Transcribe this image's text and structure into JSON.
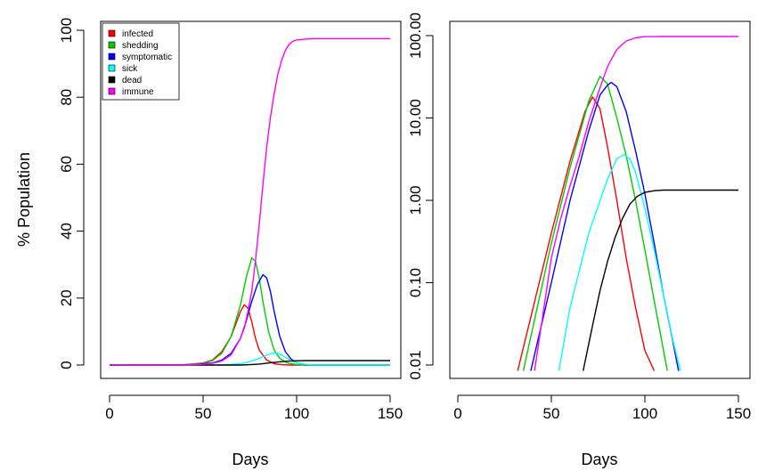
{
  "chart_data": [
    {
      "type": "line",
      "scale": "linear",
      "xlabel": "Days",
      "ylabel": "% Population",
      "xlim": [
        0,
        150
      ],
      "ylim": [
        0,
        100
      ],
      "xticks": [
        0,
        50,
        100,
        150
      ],
      "yticks": [
        0,
        20,
        40,
        60,
        80,
        100
      ],
      "xtick_labels": [
        "0",
        "50",
        "100",
        "150"
      ],
      "ytick_labels": [
        "0",
        "20",
        "40",
        "60",
        "80",
        "100"
      ],
      "grid": false,
      "legend": "top-left",
      "series": [
        {
          "name": "infected",
          "color": "#ff0000",
          "x": [
            0,
            40,
            50,
            55,
            60,
            65,
            68,
            70,
            72,
            74,
            76,
            78,
            80,
            84,
            88,
            92,
            96,
            100,
            150
          ],
          "y": [
            0,
            0.1,
            0.6,
            1.5,
            4,
            8.5,
            13,
            16,
            18,
            17,
            13,
            8,
            4.5,
            1.5,
            0.4,
            0.1,
            0,
            0,
            0
          ]
        },
        {
          "name": "shedding",
          "color": "#00cc00",
          "x": [
            0,
            40,
            50,
            55,
            60,
            65,
            70,
            73,
            76,
            78,
            80,
            82,
            85,
            88,
            91,
            95,
            100,
            105,
            150
          ],
          "y": [
            0,
            0.1,
            0.5,
            1.3,
            3.5,
            8.5,
            18,
            26,
            32,
            31,
            26,
            19,
            10,
            4.5,
            2,
            0.6,
            0.1,
            0,
            0
          ]
        },
        {
          "name": "symptomatic",
          "color": "#0000ff",
          "x": [
            0,
            45,
            55,
            60,
            65,
            70,
            73,
            76,
            79,
            82,
            84,
            86,
            88,
            91,
            94,
            97,
            100,
            105,
            110,
            150
          ],
          "y": [
            0,
            0.1,
            0.6,
            1.5,
            3.5,
            8,
            13,
            19,
            24,
            27,
            26,
            22,
            16,
            8.5,
            4,
            1.8,
            0.7,
            0.1,
            0,
            0
          ]
        },
        {
          "name": "sick",
          "color": "#00ffff",
          "x": [
            0,
            60,
            70,
            75,
            80,
            85,
            88,
            90,
            92,
            95,
            98,
            102,
            106,
            110,
            150
          ],
          "y": [
            0,
            0.03,
            0.4,
            1,
            2,
            3.2,
            3.6,
            3.5,
            3,
            2,
            1.1,
            0.4,
            0.1,
            0,
            0
          ]
        },
        {
          "name": "dead",
          "color": "#000000",
          "x": [
            0,
            70,
            75,
            80,
            85,
            90,
            95,
            100,
            105,
            110,
            150
          ],
          "y": [
            0,
            0,
            0.1,
            0.3,
            0.6,
            0.9,
            1.15,
            1.28,
            1.32,
            1.33,
            1.33
          ]
        },
        {
          "name": "immune",
          "color": "#ff00ff",
          "x": [
            0,
            40,
            50,
            55,
            60,
            65,
            70,
            72,
            74,
            76,
            78,
            80,
            82,
            84,
            86,
            88,
            90,
            92,
            94,
            96,
            98,
            100,
            105,
            110,
            150
          ],
          "y": [
            0,
            0,
            0.2,
            0.5,
            1.2,
            3,
            8,
            11,
            16,
            22,
            31,
            42,
            54,
            65,
            74,
            81,
            87,
            91,
            94,
            95.8,
            96.7,
            97.1,
            97.4,
            97.5,
            97.5
          ]
        }
      ]
    },
    {
      "type": "line",
      "scale": "log",
      "xlabel": "Days",
      "ylabel": "",
      "xlim": [
        0,
        150
      ],
      "ylim": [
        0.01,
        100
      ],
      "xticks": [
        0,
        50,
        100,
        150
      ],
      "yticks": [
        0.01,
        0.1,
        1,
        10,
        100
      ],
      "xtick_labels": [
        "0",
        "50",
        "100",
        "150"
      ],
      "ytick_labels": [
        "0.01",
        "0.10",
        "1.00",
        "10.00",
        "100.00"
      ],
      "grid": false,
      "series": [
        {
          "name": "infected",
          "color": "#ff0000",
          "x": [
            32,
            50,
            60,
            68,
            72,
            76,
            80,
            85,
            90,
            95,
            100,
            105
          ],
          "y": [
            0.0085,
            0.4,
            3,
            12,
            18,
            13,
            4.5,
            1,
            0.2,
            0.05,
            0.015,
            0.0085
          ]
        },
        {
          "name": "shedding",
          "color": "#00cc00",
          "x": [
            35,
            50,
            60,
            70,
            76,
            80,
            85,
            90,
            95,
            100,
            105,
            112
          ],
          "y": [
            0.0085,
            0.3,
            2.5,
            16,
            32,
            26,
            10,
            3.5,
            1,
            0.25,
            0.06,
            0.0085
          ]
        },
        {
          "name": "symptomatic",
          "color": "#0000ff",
          "x": [
            39,
            50,
            60,
            70,
            76,
            80,
            82,
            85,
            90,
            95,
            100,
            105,
            110,
            114,
            118
          ],
          "y": [
            0.0085,
            0.1,
            1,
            7,
            19,
            25,
            27,
            24,
            12,
            4,
            1.2,
            0.3,
            0.07,
            0.025,
            0.0085
          ]
        },
        {
          "name": "sick",
          "color": "#00ffff",
          "x": [
            54,
            60,
            70,
            80,
            85,
            89,
            92,
            95,
            100,
            105,
            110,
            115,
            119
          ],
          "y": [
            0.0085,
            0.05,
            0.4,
            1.8,
            3.2,
            3.6,
            3.2,
            2.2,
            0.8,
            0.25,
            0.07,
            0.02,
            0.0085
          ]
        },
        {
          "name": "dead",
          "color": "#000000",
          "x": [
            67,
            72,
            76,
            80,
            84,
            88,
            92,
            96,
            100,
            105,
            110,
            120,
            150
          ],
          "y": [
            0.0085,
            0.03,
            0.08,
            0.18,
            0.35,
            0.6,
            0.9,
            1.12,
            1.25,
            1.31,
            1.33,
            1.33,
            1.33
          ]
        },
        {
          "name": "immune",
          "color": "#ff00ff",
          "x": [
            41,
            50,
            55,
            60,
            65,
            70,
            75,
            80,
            85,
            90,
            95,
            100,
            105,
            110,
            150
          ],
          "y": [
            0.0085,
            0.2,
            0.6,
            1.5,
            3.5,
            9,
            20,
            42,
            68,
            86,
            94,
            97,
            97.4,
            97.5,
            97.5
          ]
        }
      ]
    }
  ]
}
